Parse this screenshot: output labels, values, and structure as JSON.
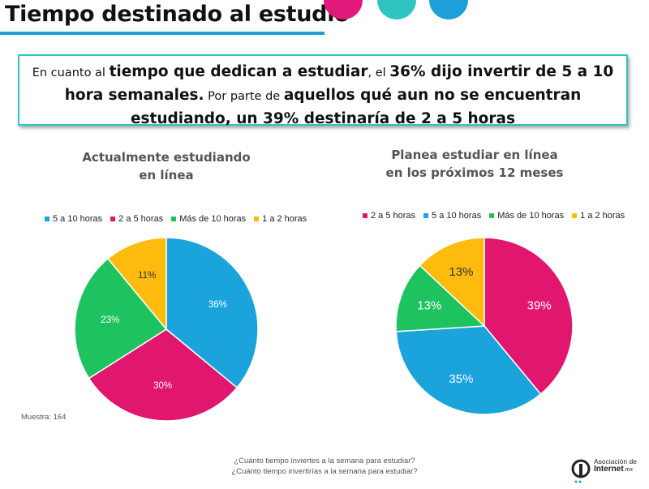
{
  "header": {
    "title": "Tiempo destinado  al estudio"
  },
  "decor_colors": [
    "#e2197a",
    "#2ec4c0",
    "#1e9fd9"
  ],
  "callout": {
    "p1": "En cuanto al ",
    "b1": "tiempo que dedican a estudiar",
    "p2": ", el ",
    "b2": "36% dijo invertir de 5 a 10 hora semanales.",
    "p3": " Por parte de ",
    "b3": "aquellos qué aun no se encuentran estudiando, un 39% destinaría de 2 a 5 horas"
  },
  "chart_data": [
    {
      "type": "pie",
      "title_line1": "Actualmente estudiando",
      "title_line2": "en línea",
      "legend": [
        "5 a 10 horas",
        "2 a 5 horas",
        "Más de 10 horas",
        "1 a 2 horas"
      ],
      "legend_colors": [
        "#1ba3db",
        "#e0166f",
        "#1ec35f",
        "#fdbb0e"
      ],
      "slices": [
        {
          "label": "5 a 10 horas",
          "value": 36,
          "text": "36%",
          "color": "#1ba3db"
        },
        {
          "label": "2 a 5 horas",
          "value": 30,
          "text": "30%",
          "color": "#e0166f"
        },
        {
          "label": "Más de 10 horas",
          "value": 23,
          "text": "23%",
          "color": "#1ec35f"
        },
        {
          "label": "1 a 2 horas",
          "value": 11,
          "text": "11%",
          "color": "#fdbb0e"
        }
      ]
    },
    {
      "type": "pie",
      "title_line1": "Planea estudiar en línea",
      "title_line2": "en los próximos 12 meses",
      "legend": [
        "2 a 5 horas",
        "5 a 10 horas",
        "Más de 10 horas",
        "1 a 2 horas"
      ],
      "legend_colors": [
        "#e0166f",
        "#1ba3db",
        "#1ec35f",
        "#fdbb0e"
      ],
      "slices": [
        {
          "label": "2 a 5 horas",
          "value": 39,
          "text": "39%",
          "color": "#e0166f"
        },
        {
          "label": "5 a 10 horas",
          "value": 35,
          "text": "35%",
          "color": "#1ba3db"
        },
        {
          "label": "Más de 10 horas",
          "value": 13,
          "text": "13%",
          "color": "#1ec35f"
        },
        {
          "label": "1 a 2 horas",
          "value": 13,
          "text": "13%",
          "color": "#fdbb0e"
        }
      ]
    }
  ],
  "footer": {
    "sample": "Muestra: 164",
    "question1": "¿Cuánto tiempo inviertes a la semana para estudiar?",
    "question2": "¿Cuánto tiempo invertirías a la semana para estudiar?",
    "logo_line1": "Asociación de",
    "logo_line2": "Internet",
    "logo_suffix": ".mx"
  }
}
